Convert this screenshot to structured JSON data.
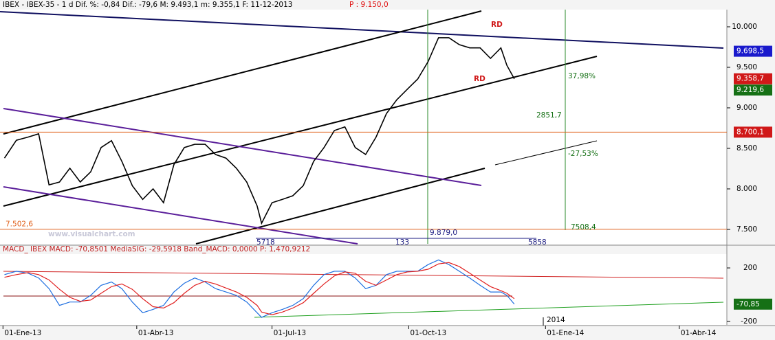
{
  "chart_data": [
    {
      "type": "line",
      "title": "IBEX - IBEX-35 -  1 d Dif. %: -0,84 Dif.: -79,6 M: 9.493,1 m: 9.355,1 F: 11-12-2013",
      "title_price": "P : 9.150,0",
      "x": [
        "2013-01-02",
        "2013-01-10",
        "2013-01-18",
        "2013-01-25",
        "2013-02-01",
        "2013-02-08",
        "2013-02-15",
        "2013-02-22",
        "2013-03-01",
        "2013-03-08",
        "2013-03-15",
        "2013-03-22",
        "2013-03-29",
        "2013-04-05",
        "2013-04-12",
        "2013-04-19",
        "2013-04-26",
        "2013-05-03",
        "2013-05-10",
        "2013-05-17",
        "2013-05-24",
        "2013-05-31",
        "2013-06-07",
        "2013-06-14",
        "2013-06-21",
        "2013-06-24",
        "2013-07-01",
        "2013-07-08",
        "2013-07-15",
        "2013-07-22",
        "2013-07-29",
        "2013-08-05",
        "2013-08-12",
        "2013-08-19",
        "2013-08-26",
        "2013-09-02",
        "2013-09-09",
        "2013-09-16",
        "2013-09-23",
        "2013-09-30",
        "2013-10-07",
        "2013-10-14",
        "2013-10-21",
        "2013-10-28",
        "2013-11-04",
        "2013-11-11",
        "2013-11-18",
        "2013-11-25",
        "2013-12-02",
        "2013-12-06",
        "2013-12-11"
      ],
      "values": [
        8380,
        8600,
        8640,
        8680,
        8050,
        8085,
        8255,
        8085,
        8210,
        8510,
        8595,
        8340,
        8040,
        7870,
        8000,
        7830,
        8300,
        8510,
        8550,
        8550,
        8425,
        8380,
        8255,
        8085,
        7790,
        7575,
        7830,
        7870,
        7915,
        8040,
        8340,
        8510,
        8720,
        8765,
        8510,
        8425,
        8640,
        8930,
        9100,
        9230,
        9355,
        9570,
        9865,
        9865,
        9780,
        9740,
        9740,
        9610,
        9740,
        9525,
        9358.7
      ],
      "color": "#000000",
      "xlim": [
        "2012-12-30",
        "2014-05-03"
      ],
      "ylim": [
        7322,
        10212
      ],
      "yticks": [
        {
          "value": 7500,
          "label": "7.500"
        },
        {
          "value": 8000,
          "label": "8.000"
        },
        {
          "value": 8500,
          "label": "8.500"
        },
        {
          "value": 9000,
          "label": "9.000"
        },
        {
          "value": 9500,
          "label": "9.500"
        },
        {
          "value": 10000,
          "label": "10.000"
        }
      ],
      "reference_lines": [
        {
          "value": 8700.1,
          "label": "8.700,1",
          "color": "#e0601a"
        },
        {
          "value": 7502.6,
          "label": "7.502,6",
          "color": "#e0601a"
        }
      ],
      "price_labels": [
        {
          "value": 9698.5,
          "label": "9.698,5",
          "color": "#1a1acc"
        },
        {
          "value": 9358.7,
          "label": "9.358,7",
          "color": "#d01818"
        },
        {
          "value": 9219.6,
          "label": "9.219,6",
          "color": "#157015"
        }
      ],
      "annotations": [
        "RD",
        "RD",
        "37,98%",
        "2851,7",
        "-27,53%",
        "7508,4",
        "9.879,0",
        "5718",
        "133",
        "5858",
        "www.visualchart.com"
      ]
    },
    {
      "type": "line",
      "title": "MACD_ IBEX MACD: -70,8501 MediaSIG: -29,5918 Band_MACD: 0,0000 P: 1,470,9212",
      "x": [
        "2013-01-02",
        "2013-01-10",
        "2013-01-18",
        "2013-01-25",
        "2013-02-01",
        "2013-02-08",
        "2013-02-15",
        "2013-02-22",
        "2013-03-01",
        "2013-03-08",
        "2013-03-15",
        "2013-03-22",
        "2013-03-29",
        "2013-04-05",
        "2013-04-12",
        "2013-04-19",
        "2013-04-26",
        "2013-05-03",
        "2013-05-10",
        "2013-05-17",
        "2013-05-24",
        "2013-05-31",
        "2013-06-07",
        "2013-06-14",
        "2013-06-21",
        "2013-06-24",
        "2013-07-01",
        "2013-07-08",
        "2013-07-15",
        "2013-07-22",
        "2013-07-29",
        "2013-08-05",
        "2013-08-12",
        "2013-08-19",
        "2013-08-26",
        "2013-09-02",
        "2013-09-09",
        "2013-09-16",
        "2013-09-23",
        "2013-09-30",
        "2013-10-07",
        "2013-10-14",
        "2013-10-21",
        "2013-10-28",
        "2013-11-04",
        "2013-11-11",
        "2013-11-18",
        "2013-11-25",
        "2013-12-02",
        "2013-12-06",
        "2013-12-11"
      ],
      "series": [
        {
          "color": "#1f6fe0",
          "values": [
            150,
            175,
            160,
            125,
            45,
            -80,
            -55,
            -55,
            -5,
            70,
            95,
            45,
            -55,
            -135,
            -110,
            -80,
            20,
            85,
            125,
            95,
            45,
            20,
            -5,
            -55,
            -135,
            -170,
            -135,
            -110,
            -80,
            -30,
            70,
            150,
            175,
            175,
            125,
            45,
            70,
            150,
            175,
            175,
            175,
            225,
            260,
            225,
            175,
            125,
            70,
            20,
            20,
            -5,
            -70.85
          ]
        },
        {
          "color": "#e02020",
          "values": [
            130,
            150,
            165,
            150,
            110,
            40,
            -20,
            -50,
            -40,
            10,
            60,
            80,
            40,
            -30,
            -90,
            -100,
            -60,
            10,
            70,
            100,
            80,
            50,
            20,
            -20,
            -80,
            -130,
            -150,
            -130,
            -100,
            -60,
            10,
            80,
            140,
            170,
            160,
            100,
            70,
            110,
            150,
            170,
            175,
            190,
            230,
            240,
            210,
            160,
            110,
            60,
            30,
            10,
            -29.59
          ]
        }
      ],
      "xlim": [
        "2012-12-30",
        "2014-05-03"
      ],
      "ylim": [
        -226,
        303
      ],
      "yticks": [
        -200,
        200
      ],
      "xticks": [
        {
          "value": "2013-01-01",
          "label": "01-Ene-13"
        },
        {
          "value": "2013-04-01",
          "label": "01-Abr-13"
        },
        {
          "value": "2013-07-01",
          "label": "01-Jul-13"
        },
        {
          "value": "2013-10-01",
          "label": "01-Oct-13"
        },
        {
          "value": "2014-01-01",
          "label": "01-Ene-14"
        },
        {
          "value": "2014-04-01",
          "label": "01-Abr-14"
        }
      ],
      "price_labels": [
        {
          "value": -70.85,
          "label": "-70,85",
          "color": "#157015"
        }
      ],
      "annotations": [
        "2014"
      ]
    }
  ]
}
